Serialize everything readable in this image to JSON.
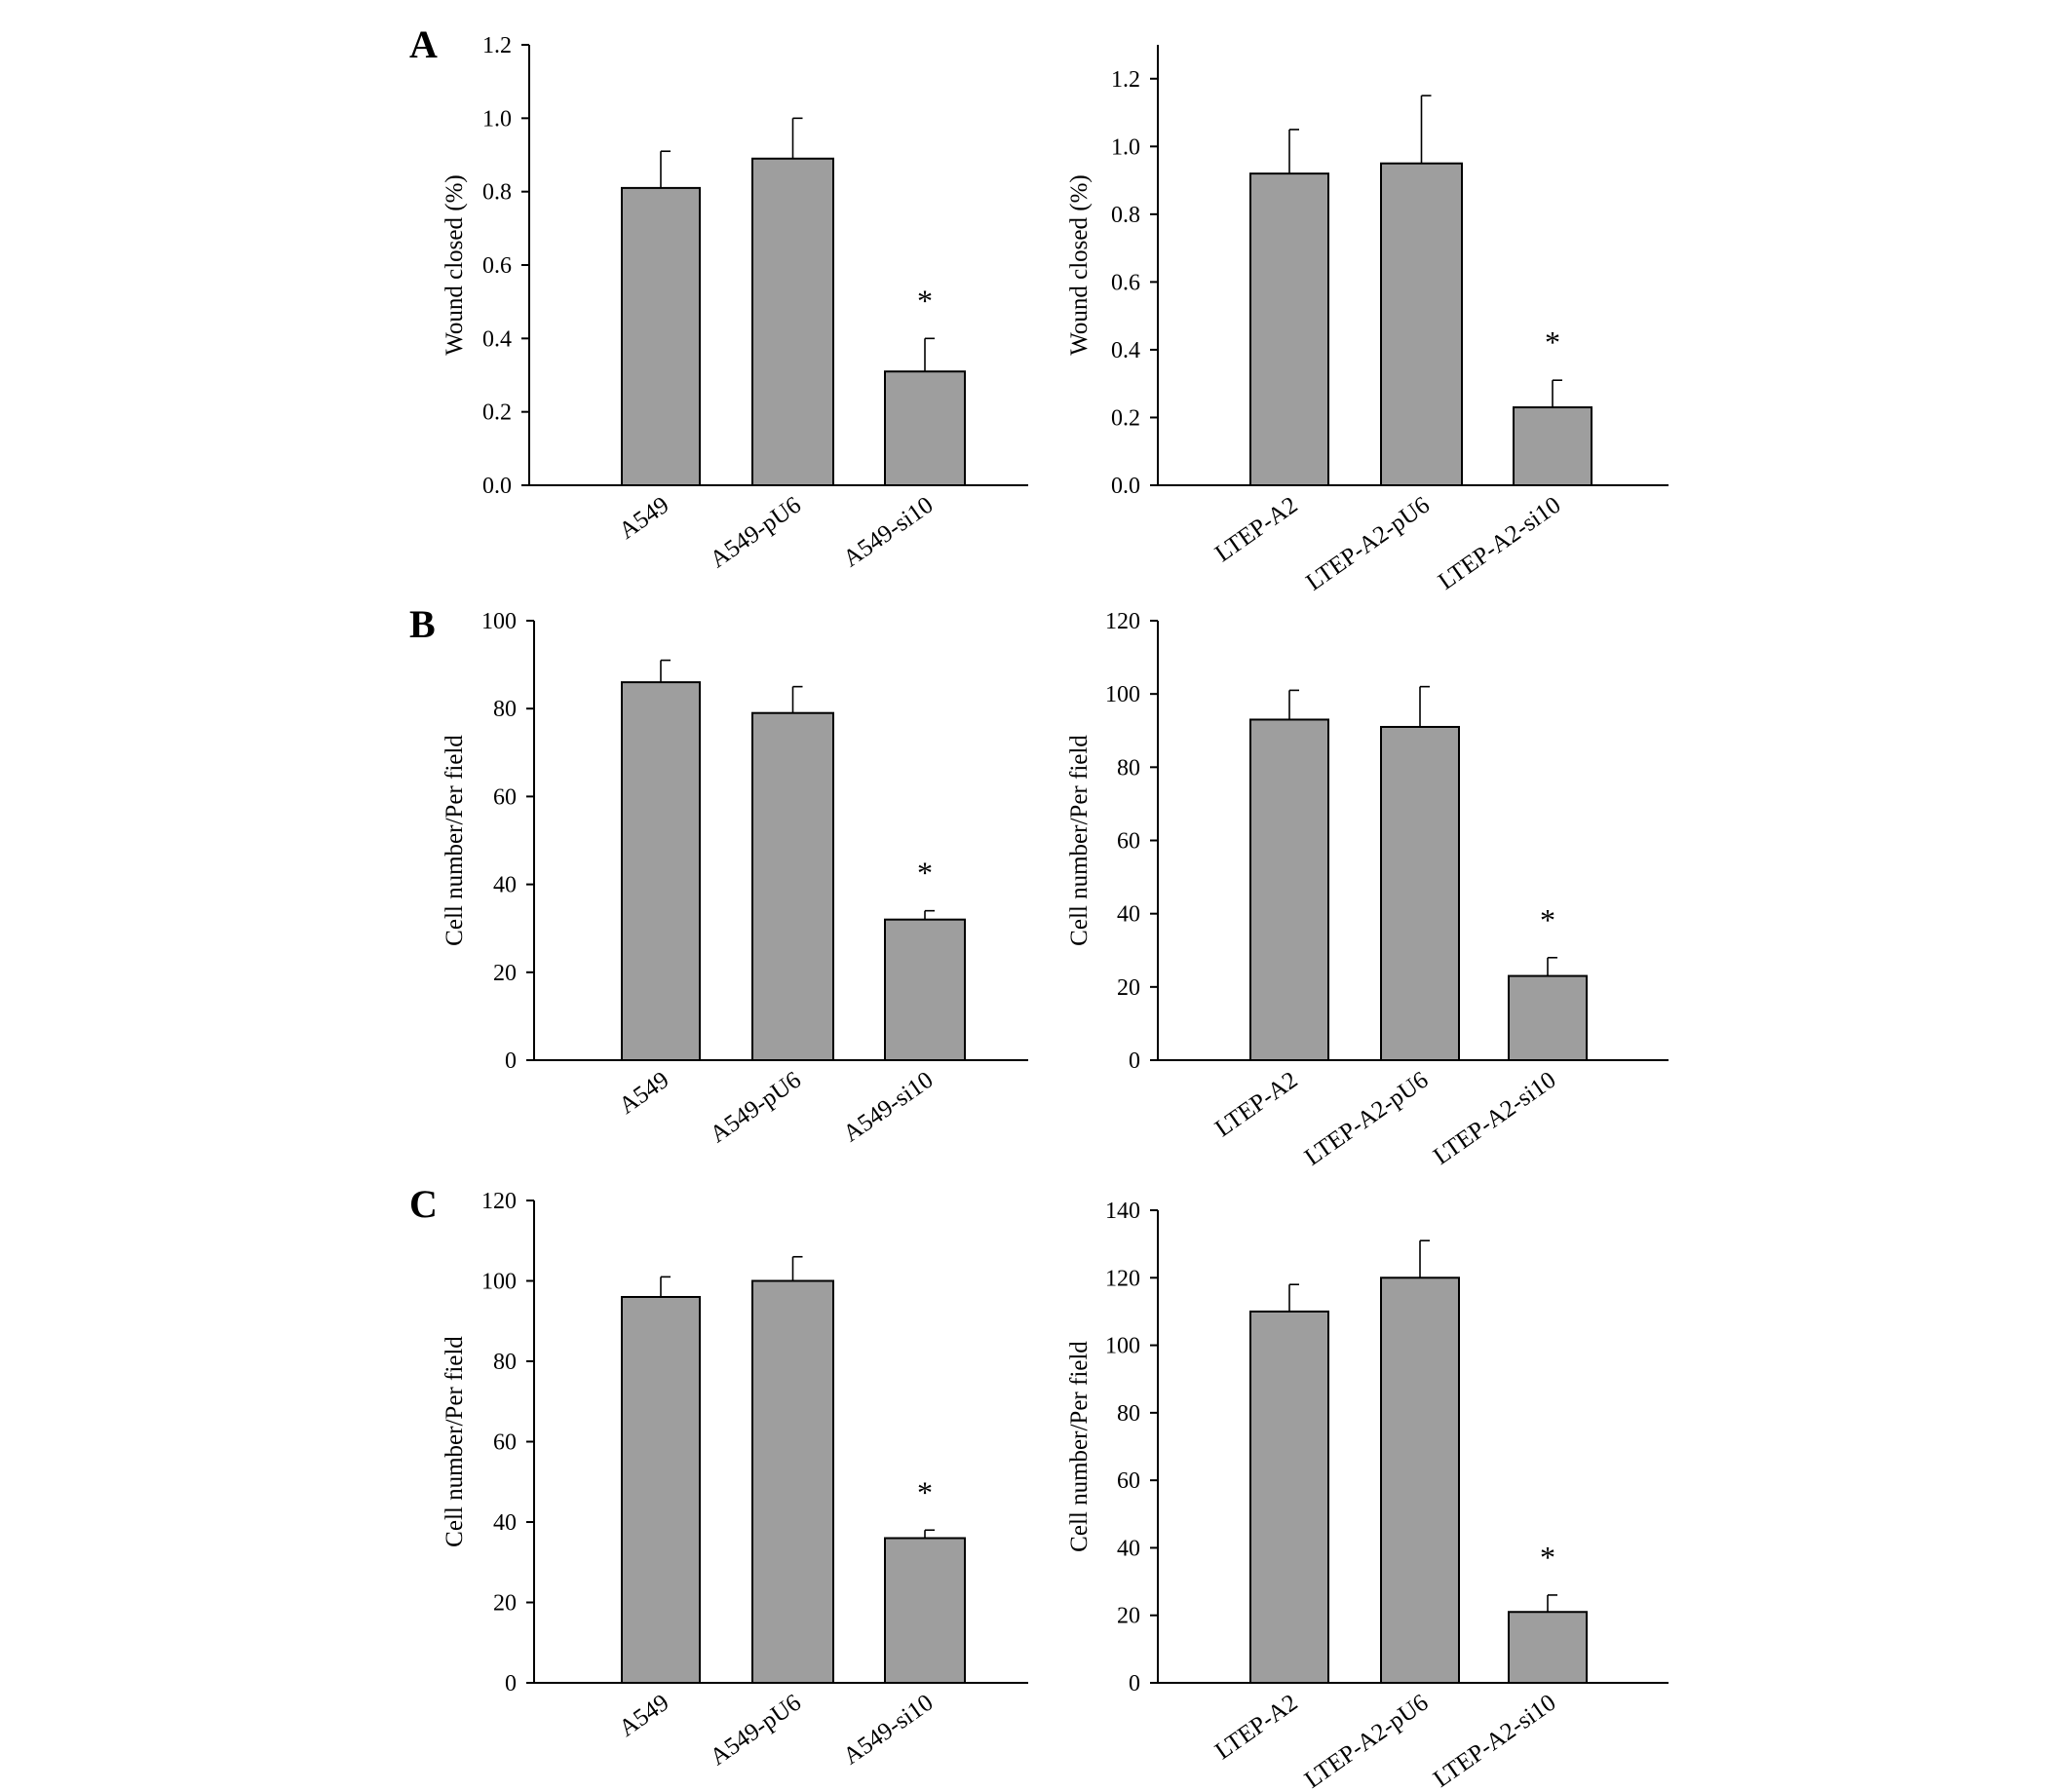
{
  "panel_letters": [
    "A",
    "B",
    "C"
  ],
  "chart_data": [
    {
      "panel": "A",
      "type": "bar",
      "ylabel": "Wound closed (%)",
      "categories": [
        "A549",
        "A549-pU6",
        "A549-si10"
      ],
      "values": [
        0.81,
        0.89,
        0.31
      ],
      "errors": [
        0.1,
        0.11,
        0.09
      ],
      "significance": [
        "",
        "",
        "*"
      ],
      "ylim": [
        0,
        1.2
      ],
      "yticks": [
        0.0,
        0.2,
        0.4,
        0.6,
        0.8,
        1.0,
        1.2
      ],
      "ytick_labels": [
        "0.0",
        "0.2",
        "0.4",
        "0.6",
        "0.8",
        "1.0",
        "1.2"
      ],
      "grid": false
    },
    {
      "panel": "A",
      "type": "bar",
      "ylabel": "Wound closed (%)",
      "categories": [
        "LTEP-A2",
        "LTEP-A2-pU6",
        "LTEP-A2-si10"
      ],
      "values": [
        0.92,
        0.95,
        0.23
      ],
      "errors": [
        0.13,
        0.2,
        0.08
      ],
      "significance": [
        "",
        "",
        "*"
      ],
      "ylim": [
        0,
        1.3
      ],
      "yticks": [
        0.0,
        0.2,
        0.4,
        0.6,
        0.8,
        1.0,
        1.2
      ],
      "ytick_labels": [
        "0.0",
        "0.2",
        "0.4",
        "0.6",
        "0.8",
        "1.0",
        "1.2"
      ],
      "grid": false
    },
    {
      "panel": "B",
      "type": "bar",
      "ylabel": "Cell number/Per field",
      "categories": [
        "A549",
        "A549-pU6",
        "A549-si10"
      ],
      "values": [
        86,
        79,
        32
      ],
      "errors": [
        5,
        6,
        2
      ],
      "significance": [
        "",
        "",
        "*"
      ],
      "ylim": [
        0,
        100
      ],
      "yticks": [
        0,
        20,
        40,
        60,
        80,
        100
      ],
      "ytick_labels": [
        "0",
        "20",
        "40",
        "60",
        "80",
        "100"
      ],
      "grid": false
    },
    {
      "panel": "B",
      "type": "bar",
      "ylabel": "Cell number/Per field",
      "categories": [
        "LTEP-A2",
        "LTEP-A2-pU6",
        "LTEP-A2-si10"
      ],
      "values": [
        93,
        91,
        23
      ],
      "errors": [
        8,
        11,
        5
      ],
      "significance": [
        "",
        "",
        "*"
      ],
      "ylim": [
        0,
        120
      ],
      "yticks": [
        0,
        20,
        40,
        60,
        80,
        100,
        120
      ],
      "ytick_labels": [
        "0",
        "20",
        "40",
        "60",
        "80",
        "100",
        "120"
      ],
      "grid": false
    },
    {
      "panel": "C",
      "type": "bar",
      "ylabel": "Cell number/Per field",
      "categories": [
        "A549",
        "A549-pU6",
        "A549-si10"
      ],
      "values": [
        96,
        100,
        36
      ],
      "errors": [
        5,
        6,
        2
      ],
      "significance": [
        "",
        "",
        "*"
      ],
      "ylim": [
        0,
        120
      ],
      "yticks": [
        0,
        20,
        40,
        60,
        80,
        100,
        120
      ],
      "ytick_labels": [
        "0",
        "20",
        "40",
        "60",
        "80",
        "100",
        "120"
      ],
      "grid": false
    },
    {
      "panel": "C",
      "type": "bar",
      "ylabel": "Cell number/Per field",
      "categories": [
        "LTEP-A2",
        "LTEP-A2-pU6",
        "LTEP-A2-si10"
      ],
      "values": [
        110,
        120,
        21
      ],
      "errors": [
        8,
        11,
        5
      ],
      "significance": [
        "",
        "",
        "*"
      ],
      "ylim": [
        0,
        140
      ],
      "yticks": [
        0,
        20,
        40,
        60,
        80,
        100,
        120,
        140
      ],
      "ytick_labels": [
        "0",
        "20",
        "40",
        "60",
        "80",
        "100",
        "120",
        "140"
      ],
      "grid": false
    }
  ],
  "colors": {
    "bar_fill": "#9e9e9e",
    "bar_stroke": "#000000",
    "axis": "#000000"
  }
}
